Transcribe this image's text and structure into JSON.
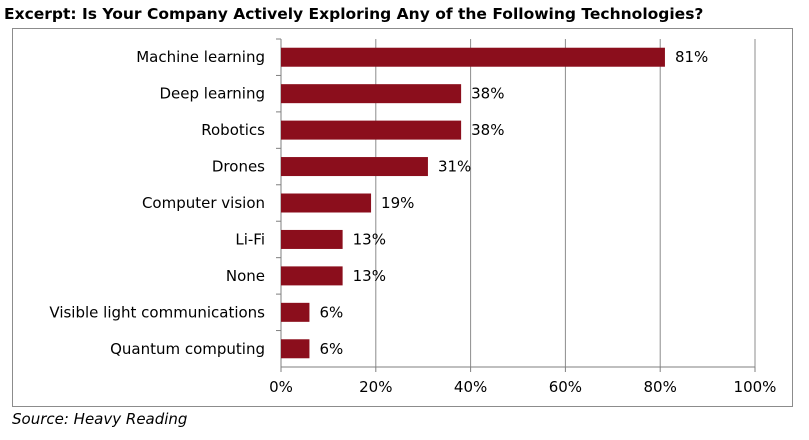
{
  "header": {
    "title": "Excerpt: Is Your Company Actively Exploring Any of the Following Technologies?"
  },
  "footer": {
    "source": "Source: Heavy Reading"
  },
  "chart_data": {
    "type": "bar",
    "orientation": "horizontal",
    "title": "Excerpt: Is Your Company Actively Exploring Any of the Following Technologies?",
    "categories": [
      "Machine learning",
      "Deep learning",
      "Robotics",
      "Drones",
      "Computer vision",
      "Li-Fi",
      "None",
      "Visible light communications",
      "Quantum computing"
    ],
    "values": [
      81,
      38,
      38,
      31,
      19,
      13,
      13,
      6,
      6
    ],
    "data_labels": [
      "81%",
      "38%",
      "38%",
      "31%",
      "19%",
      "13%",
      "13%",
      "6%",
      "6%"
    ],
    "xlim": [
      0,
      100
    ],
    "x_ticks": [
      0,
      20,
      40,
      60,
      80,
      100
    ],
    "x_tick_labels": [
      "0%",
      "20%",
      "40%",
      "60%",
      "80%",
      "100%"
    ],
    "grid": "vertical",
    "legend": "none",
    "bar_color": "#8B0E1C",
    "grid_color": "#8c8c8c"
  }
}
